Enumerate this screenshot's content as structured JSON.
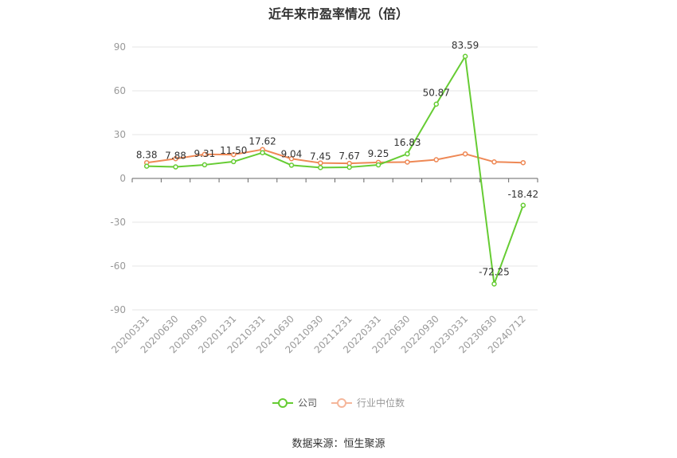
{
  "chart_data": {
    "type": "line",
    "title": "近年来市盈率情况（倍）",
    "categories": [
      "20200331",
      "20200630",
      "20200930",
      "20201231",
      "20210331",
      "20210630",
      "20210930",
      "20211231",
      "20220331",
      "20220630",
      "20220930",
      "20230331",
      "20230630",
      "20240712"
    ],
    "series": [
      {
        "name": "公司",
        "color": "#66cc33",
        "values": [
          8.38,
          7.88,
          9.31,
          11.5,
          17.62,
          9.04,
          7.45,
          7.67,
          9.25,
          16.83,
          50.87,
          83.59,
          -72.25,
          -18.42
        ],
        "labels": [
          "8.38",
          "7.88",
          "9.31",
          "11.50",
          "17.62",
          "9.04",
          "7.45",
          "7.67",
          "9.25",
          "16.83",
          "50.87",
          "83.59",
          "-72.25",
          "-18.42"
        ]
      },
      {
        "name": "行业中位数",
        "color": "#ee8855",
        "values": [
          10.8,
          13.5,
          16.5,
          16.3,
          19.8,
          13.5,
          10.6,
          10.3,
          11.0,
          11.2,
          12.8,
          16.8,
          11.3,
          10.8
        ]
      }
    ],
    "ylim": [
      -90,
      90
    ],
    "yticks": [
      "90",
      "60",
      "30",
      "0",
      "-30",
      "-60",
      "-90"
    ],
    "ytick_values": [
      90,
      60,
      30,
      0,
      -30,
      -60,
      -90
    ],
    "grid": true,
    "legend_position": "bottom-center",
    "source": "数据来源：恒生聚源"
  }
}
